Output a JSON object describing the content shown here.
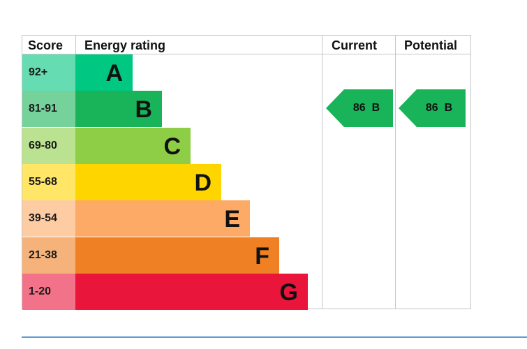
{
  "chart_data": {
    "type": "table",
    "columns": [
      "Score",
      "Energy rating",
      "Current",
      "Potential"
    ],
    "bands": [
      {
        "score": "92+",
        "letter": "A",
        "color": "#00c781",
        "score_bg": "#66dcb3"
      },
      {
        "score": "81-91",
        "letter": "B",
        "color": "#19b459",
        "score_bg": "#75d29b"
      },
      {
        "score": "69-80",
        "letter": "C",
        "color": "#8dce46",
        "score_bg": "#bbe290"
      },
      {
        "score": "55-68",
        "letter": "D",
        "color": "#ffd500",
        "score_bg": "#ffe666"
      },
      {
        "score": "39-54",
        "letter": "E",
        "color": "#fcaa65",
        "score_bg": "#fdcca3"
      },
      {
        "score": "21-38",
        "letter": "F",
        "color": "#ef8023",
        "score_bg": "#f5b37b"
      },
      {
        "score": "1-20",
        "letter": "G",
        "color": "#e9153b",
        "score_bg": "#f27389"
      }
    ],
    "current": {
      "score": 86,
      "letter": "B",
      "label": "86  B",
      "color": "#19b459"
    },
    "potential": {
      "score": 86,
      "letter": "B",
      "label": "86  B",
      "color": "#19b459"
    }
  },
  "colors": {
    "border": "#c6c6c6",
    "footer_rule": "#5b9bd5"
  }
}
